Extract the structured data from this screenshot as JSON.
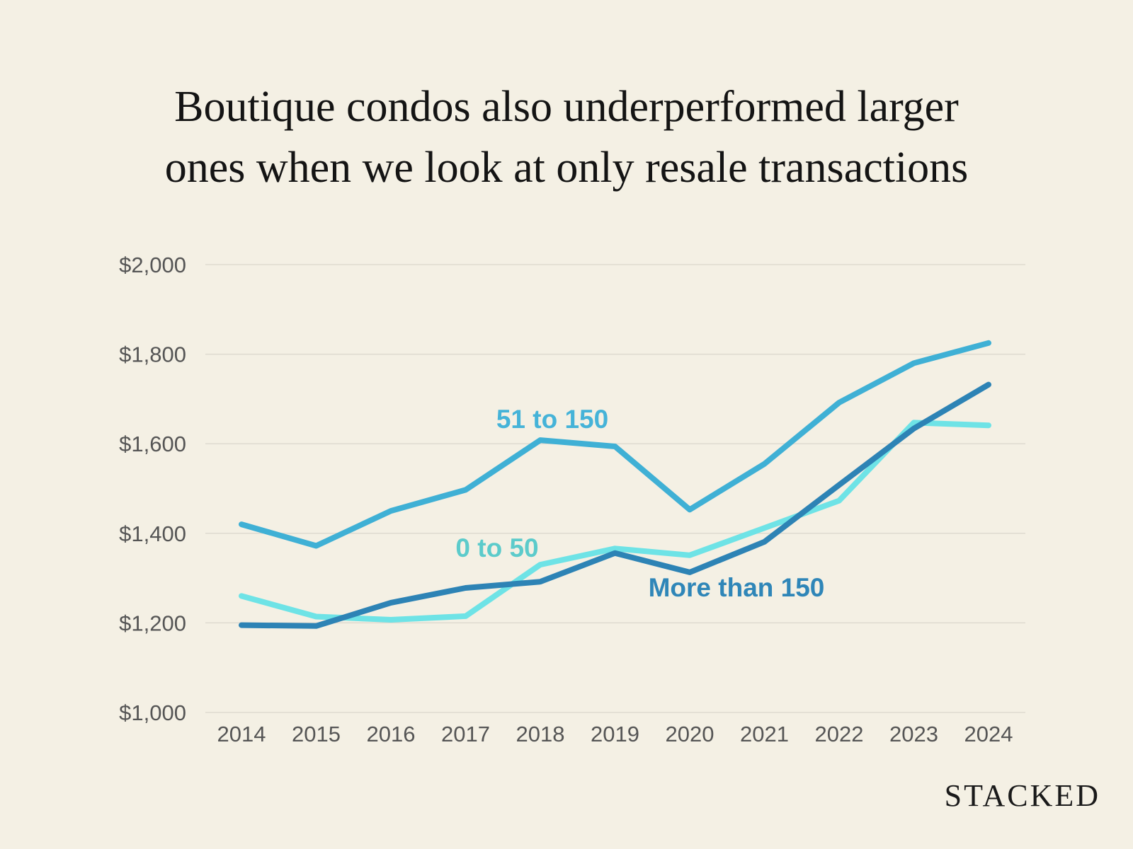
{
  "chart_data": {
    "type": "line",
    "title_lines": [
      "Boutique condos also underperformed larger",
      "ones when we look at only resale transactions"
    ],
    "categories": [
      "2014",
      "2015",
      "2016",
      "2017",
      "2018",
      "2019",
      "2020",
      "2021",
      "2022",
      "2023",
      "2024"
    ],
    "ylim": [
      1000,
      2000
    ],
    "ytick_values": [
      1000,
      1200,
      1400,
      1600,
      1800,
      2000
    ],
    "ytick_labels": [
      "$1,000",
      "$1,200",
      "$1,400",
      "$1,600",
      "$1,800",
      "$2,000"
    ],
    "grid": true,
    "xlabel": "",
    "ylabel": "",
    "series": [
      {
        "name": "51 to 150",
        "color": "#3fb0d5",
        "label_color": "#45b3d8",
        "values": [
          1420,
          1372,
          1450,
          1497,
          1608,
          1594,
          1453,
          1555,
          1692,
          1780,
          1825
        ]
      },
      {
        "name": "0 to 50",
        "color": "#6ee3e6",
        "label_color": "#5ccbcb",
        "values": [
          1260,
          1214,
          1207,
          1215,
          1330,
          1366,
          1351,
          1412,
          1473,
          1647,
          1641
        ]
      },
      {
        "name": "More than 150",
        "color": "#2d83b5",
        "label_color": "#2f86b8",
        "values": [
          1195,
          1193,
          1245,
          1278,
          1292,
          1356,
          1313,
          1381,
          1508,
          1634,
          1732
        ]
      }
    ]
  },
  "brand": "STACKED"
}
